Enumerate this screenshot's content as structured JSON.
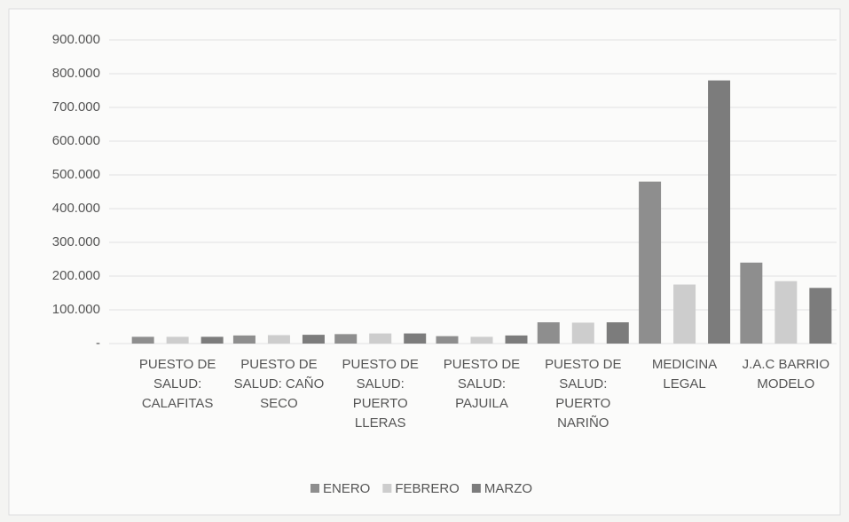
{
  "chart_data": {
    "type": "bar",
    "categories": [
      "PUESTO DE SALUD: CALAFITAS",
      "PUESTO DE SALUD: CAÑO SECO",
      "PUESTO DE SALUD: PUERTO LLERAS",
      "PUESTO DE SALUD: PAJUILA",
      "PUESTO DE SALUD: PUERTO NARIÑO",
      "MEDICINA LEGAL",
      "J.A.C BARRIO MODELO"
    ],
    "series": [
      {
        "name": "ENERO",
        "color": "#8e8e8e",
        "values": [
          20000,
          24000,
          28000,
          22000,
          63000,
          480000,
          240000
        ]
      },
      {
        "name": "FEBRERO",
        "color": "#cdcdcd",
        "values": [
          20000,
          25000,
          30000,
          20000,
          62000,
          175000,
          185000
        ]
      },
      {
        "name": "MARZO",
        "color": "#7c7c7c",
        "values": [
          20000,
          26000,
          30000,
          24000,
          63000,
          780000,
          165000
        ]
      }
    ],
    "ylim": [
      0,
      900000
    ],
    "yticks": [
      {
        "value": 0,
        "label": "-"
      },
      {
        "value": 100000,
        "label": "100.000"
      },
      {
        "value": 200000,
        "label": "200.000"
      },
      {
        "value": 300000,
        "label": "300.000"
      },
      {
        "value": 400000,
        "label": "400.000"
      },
      {
        "value": 500000,
        "label": "500.000"
      },
      {
        "value": 600000,
        "label": "600.000"
      },
      {
        "value": 700000,
        "label": "700.000"
      },
      {
        "value": 800000,
        "label": "800.000"
      },
      {
        "value": 900000,
        "label": "900.000"
      }
    ],
    "grid": true,
    "legend": "bottom"
  }
}
